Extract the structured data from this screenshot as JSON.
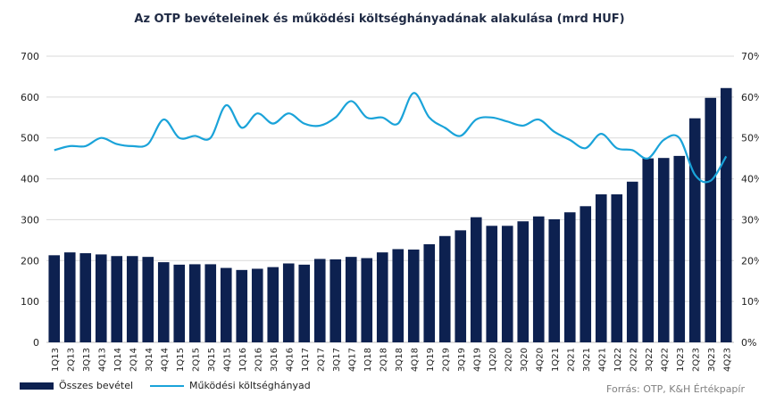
{
  "chart_data": {
    "type": "bar",
    "title": "Az OTP bevételeinek  és működési költséghányadának alakulása (mrd HUF)",
    "categories": [
      "1Q13",
      "2Q13",
      "3Q13",
      "4Q13",
      "1Q14",
      "2Q14",
      "3Q14",
      "4Q14",
      "1Q15",
      "2Q15",
      "3Q15",
      "4Q15",
      "1Q16",
      "2Q16",
      "3Q16",
      "4Q16",
      "1Q17",
      "2Q17",
      "3Q17",
      "4Q17",
      "1Q18",
      "2Q18",
      "3Q18",
      "4Q18",
      "1Q19",
      "2Q19",
      "3Q19",
      "4Q19",
      "1Q20",
      "2Q20",
      "3Q20",
      "4Q20",
      "1Q21",
      "2Q21",
      "3Q21",
      "4Q21",
      "1Q22",
      "2Q22",
      "3Q22",
      "4Q22",
      "1Q23",
      "2Q23",
      "3Q23",
      "4Q23"
    ],
    "series": [
      {
        "name": "Összes bevétel",
        "type": "bar",
        "axis": "left",
        "color": "#0d2150",
        "values": [
          213,
          220,
          218,
          215,
          211,
          211,
          209,
          196,
          190,
          191,
          191,
          182,
          177,
          180,
          184,
          193,
          190,
          204,
          203,
          209,
          206,
          220,
          228,
          227,
          240,
          260,
          274,
          306,
          285,
          285,
          296,
          308,
          301,
          318,
          333,
          362,
          362,
          393,
          450,
          451,
          456,
          548,
          598,
          622
        ]
      },
      {
        "name": "Működési költséghányad",
        "type": "line",
        "axis": "right",
        "color": "#1aa3d9",
        "values": [
          0.47,
          0.48,
          0.48,
          0.5,
          0.485,
          0.48,
          0.485,
          0.545,
          0.5,
          0.505,
          0.5,
          0.58,
          0.525,
          0.56,
          0.535,
          0.56,
          0.535,
          0.53,
          0.55,
          0.59,
          0.55,
          0.55,
          0.535,
          0.61,
          0.55,
          0.525,
          0.505,
          0.545,
          0.55,
          0.54,
          0.53,
          0.545,
          0.515,
          0.495,
          0.475,
          0.51,
          0.475,
          0.47,
          0.45,
          0.495,
          0.5,
          0.41,
          0.395,
          0.455
        ]
      }
    ],
    "yleft": {
      "min": 0,
      "max": 700,
      "step": 100,
      "ticks": [
        "0",
        "100",
        "200",
        "300",
        "400",
        "500",
        "600",
        "700"
      ]
    },
    "yright": {
      "min": 0,
      "max": 0.7,
      "step": 0.1,
      "ticks": [
        "0%",
        "10%",
        "20%",
        "30%",
        "40%",
        "50%",
        "60%",
        "70%"
      ]
    },
    "grid": true,
    "legend_position": "bottom-left"
  },
  "legend": {
    "bar_label": "Összes bevétel",
    "line_label": "Működési költséghányad"
  },
  "source": "Forrás: OTP, K&H Értékpapír"
}
